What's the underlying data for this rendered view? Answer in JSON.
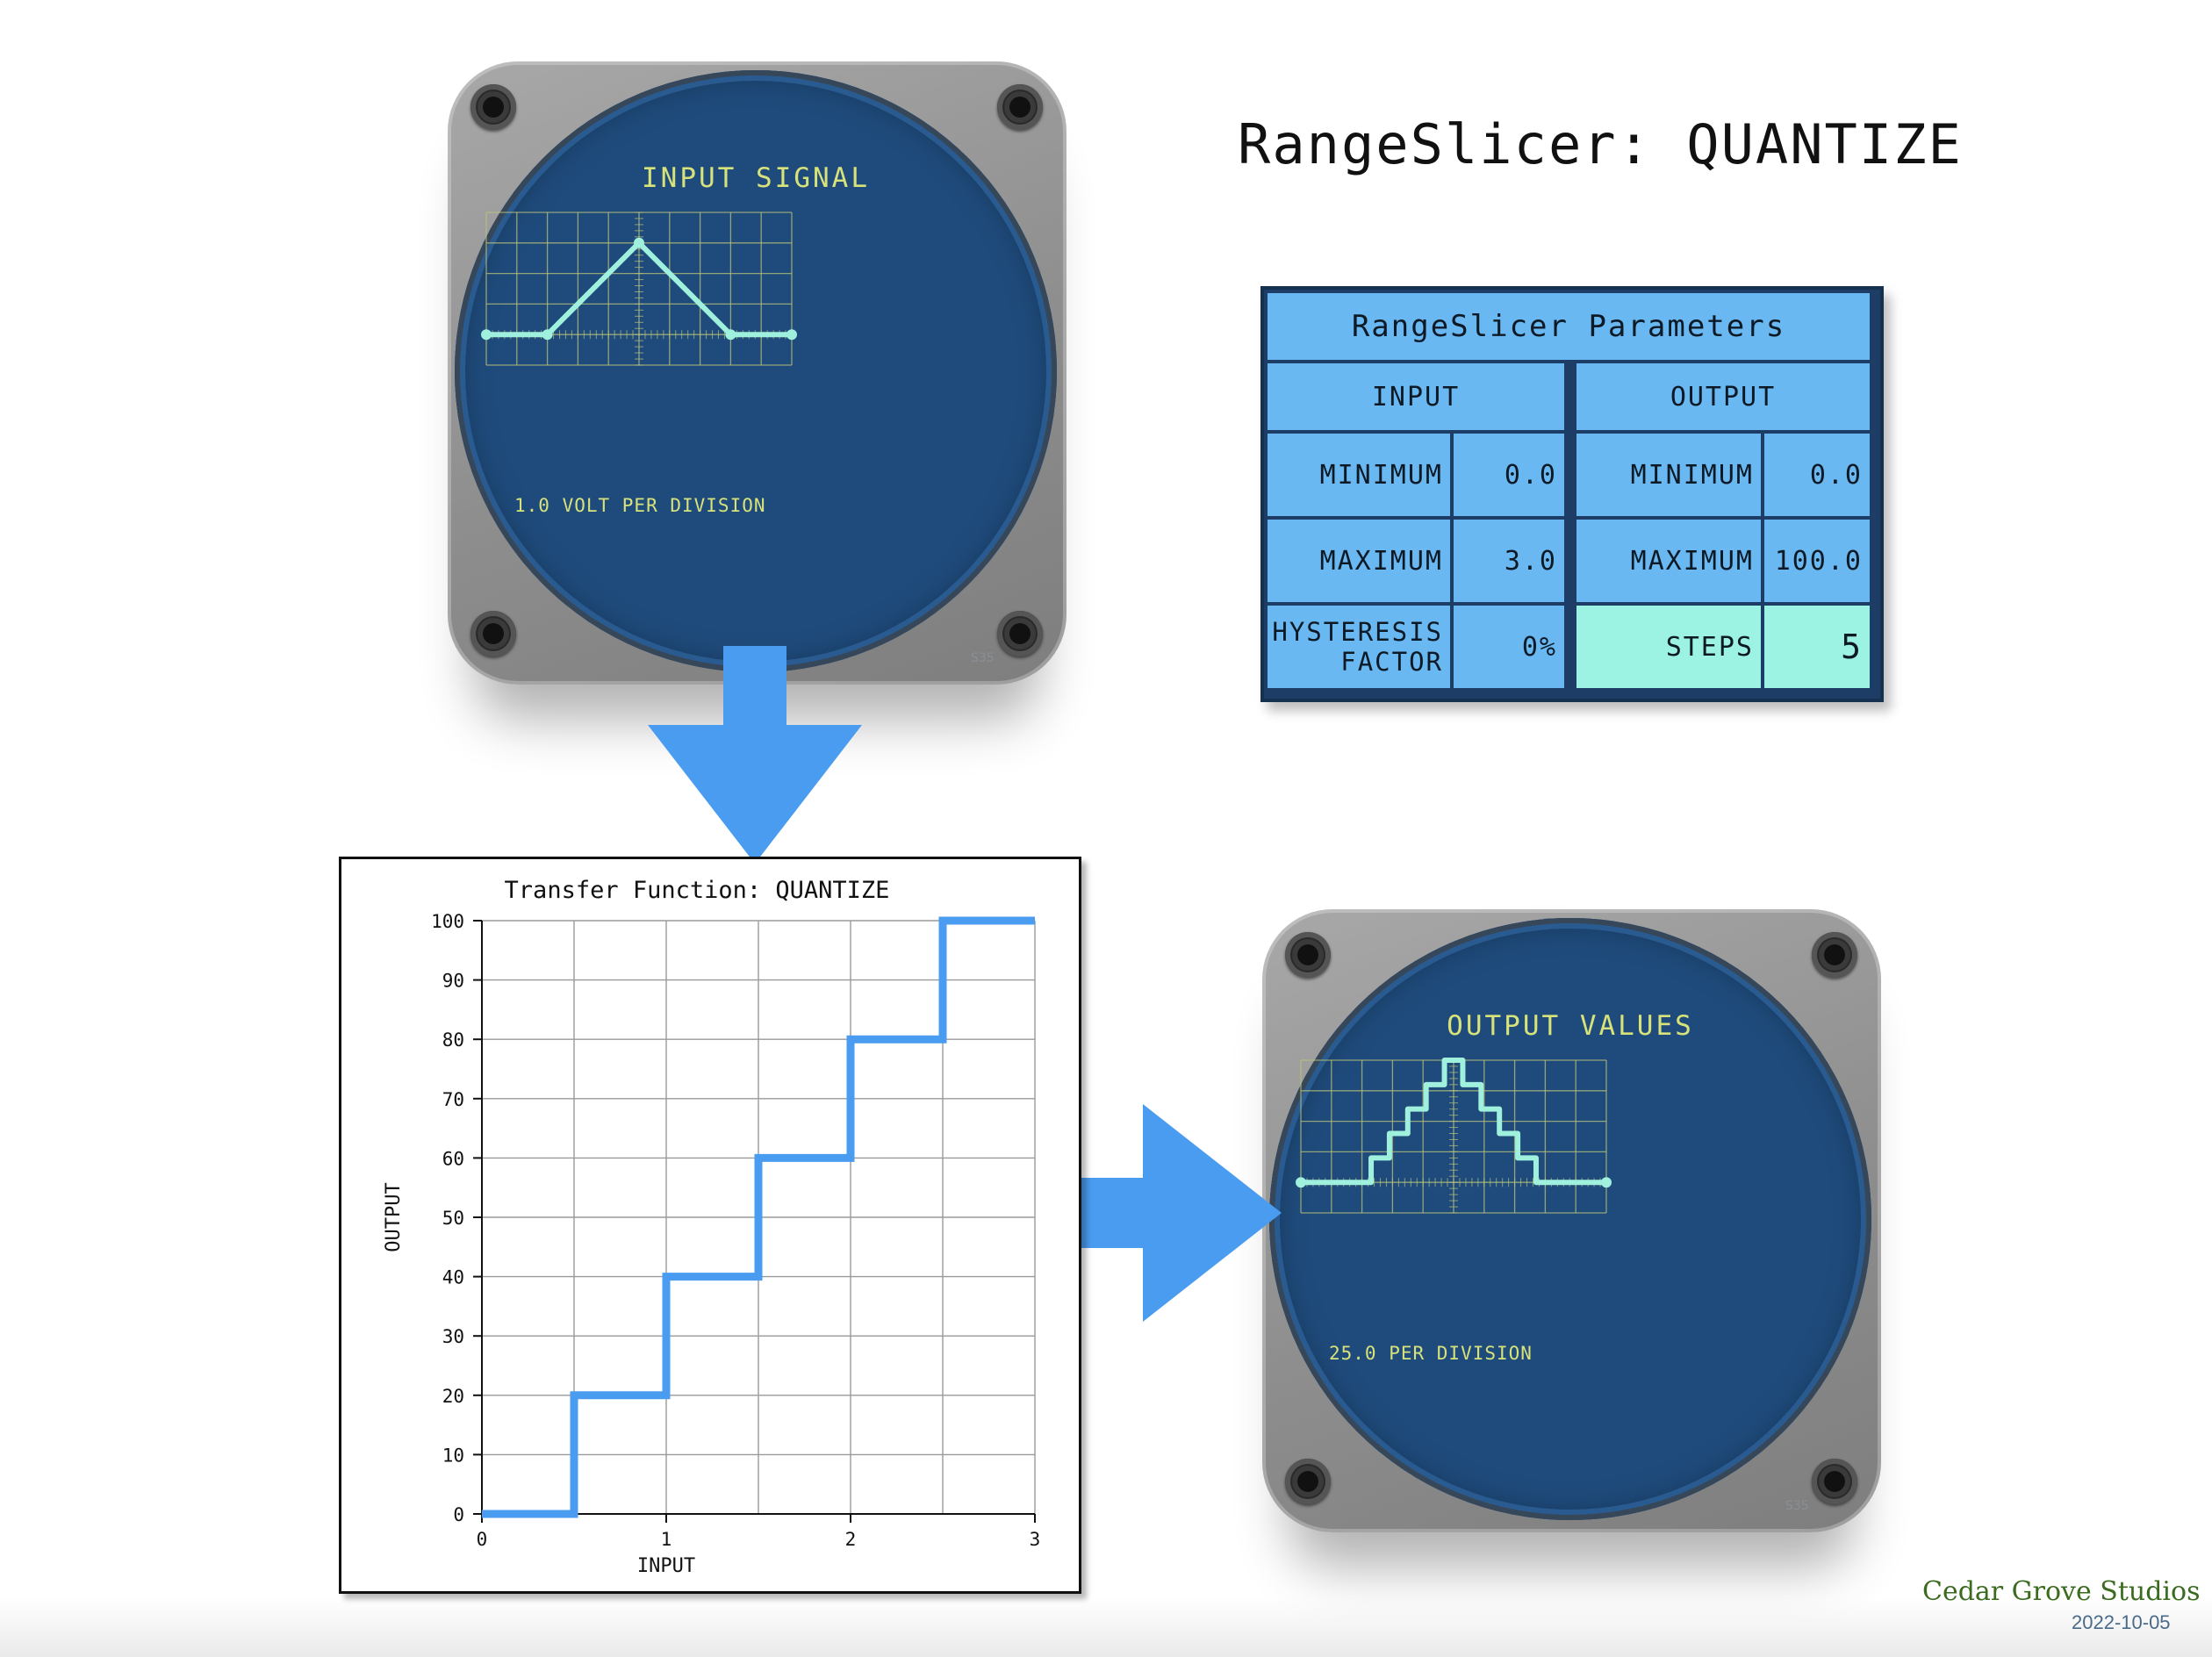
{
  "title": "RangeSlicer: QUANTIZE",
  "input_scope": {
    "label": "INPUT SIGNAL",
    "division": "1.0 VOLT PER DIVISION",
    "model": "S35",
    "trace_volts": [
      0,
      0,
      3,
      0,
      0
    ]
  },
  "output_scope": {
    "label": "OUTPUT VALUES",
    "division": "25.0 PER DIVISION",
    "model": "S35",
    "trace_levels": [
      0,
      20,
      40,
      60,
      80,
      100,
      80,
      60,
      40,
      20,
      0
    ]
  },
  "parameters": {
    "heading": "RangeSlicer Parameters",
    "input_header": "INPUT",
    "output_header": "OUTPUT",
    "input_min_label": "MINIMUM",
    "input_min_value": "0.0",
    "input_max_label": "MAXIMUM",
    "input_max_value": "3.0",
    "hysteresis_label_1": "HYSTERESIS",
    "hysteresis_label_2": "FACTOR",
    "hysteresis_value": "0%",
    "output_min_label": "MINIMUM",
    "output_min_value": "0.0",
    "output_max_label": "MAXIMUM",
    "output_max_value": "100.0",
    "steps_label": "STEPS",
    "steps_value": "5"
  },
  "chart_data": {
    "type": "line",
    "title": "Transfer Function: QUANTIZE",
    "xlabel": "INPUT",
    "ylabel": "OUTPUT",
    "xlim": [
      0,
      3
    ],
    "ylim": [
      0,
      100
    ],
    "xticks": [
      "0",
      "1",
      "2",
      "3"
    ],
    "yticks": [
      "0",
      "10",
      "20",
      "30",
      "40",
      "50",
      "60",
      "70",
      "80",
      "90",
      "100"
    ],
    "grid": true,
    "color": "#4a9cf0",
    "series": [
      {
        "x": [
          0,
          0.5,
          0.5,
          1.0,
          1.0,
          1.5,
          1.5,
          2.0,
          2.0,
          2.5,
          2.5,
          3.0
        ],
        "y": [
          0,
          0,
          20,
          20,
          40,
          40,
          60,
          60,
          80,
          80,
          100,
          100
        ]
      }
    ]
  },
  "footer": {
    "studio": "Cedar Grove Studios",
    "date": "2022-10-05"
  },
  "colors": {
    "arrow": "#4a9cf0",
    "scope_face": "#1f4b7c",
    "trace": "#9ff0dc",
    "scope_text": "#d7e27a",
    "table_cell": "#6ab8f2",
    "table_highlight": "#9df3e3"
  }
}
